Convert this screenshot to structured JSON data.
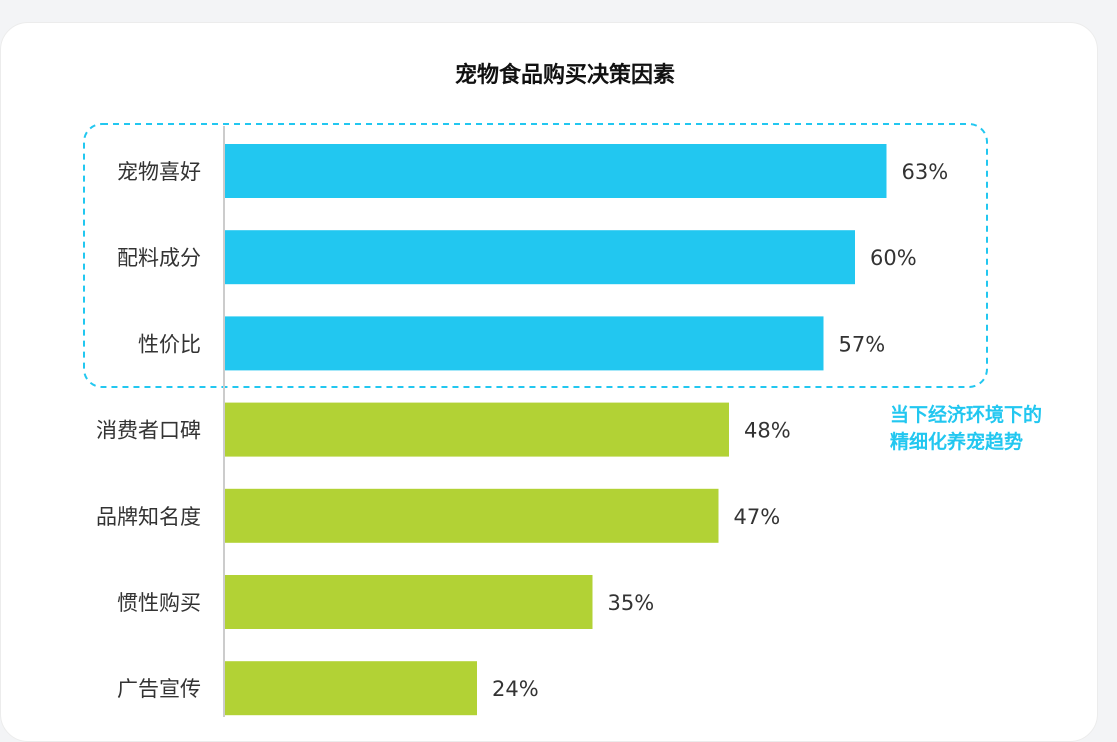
{
  "chart_data": {
    "type": "bar",
    "orientation": "horizontal",
    "title": "宠物食品购买决策因素",
    "categories": [
      "宠物喜好",
      "配料成分",
      "性价比",
      "消费者口碑",
      "品牌知名度",
      "惯性购买",
      "广告宣传"
    ],
    "values": [
      63,
      60,
      57,
      48,
      47,
      35,
      24
    ],
    "value_labels": [
      "63%",
      "60%",
      "57%",
      "48%",
      "47%",
      "35%",
      "24%"
    ],
    "unit": "%",
    "highlight_count": 3,
    "colors": {
      "highlight": "#22c7f0",
      "normal": "#b2d235",
      "annotation": "#22c7f0",
      "axis": "#cccccc"
    },
    "annotation": {
      "lines": [
        "当下经济环境下的",
        "精细化养宠趋势"
      ]
    },
    "grid": false,
    "legend": "none"
  }
}
